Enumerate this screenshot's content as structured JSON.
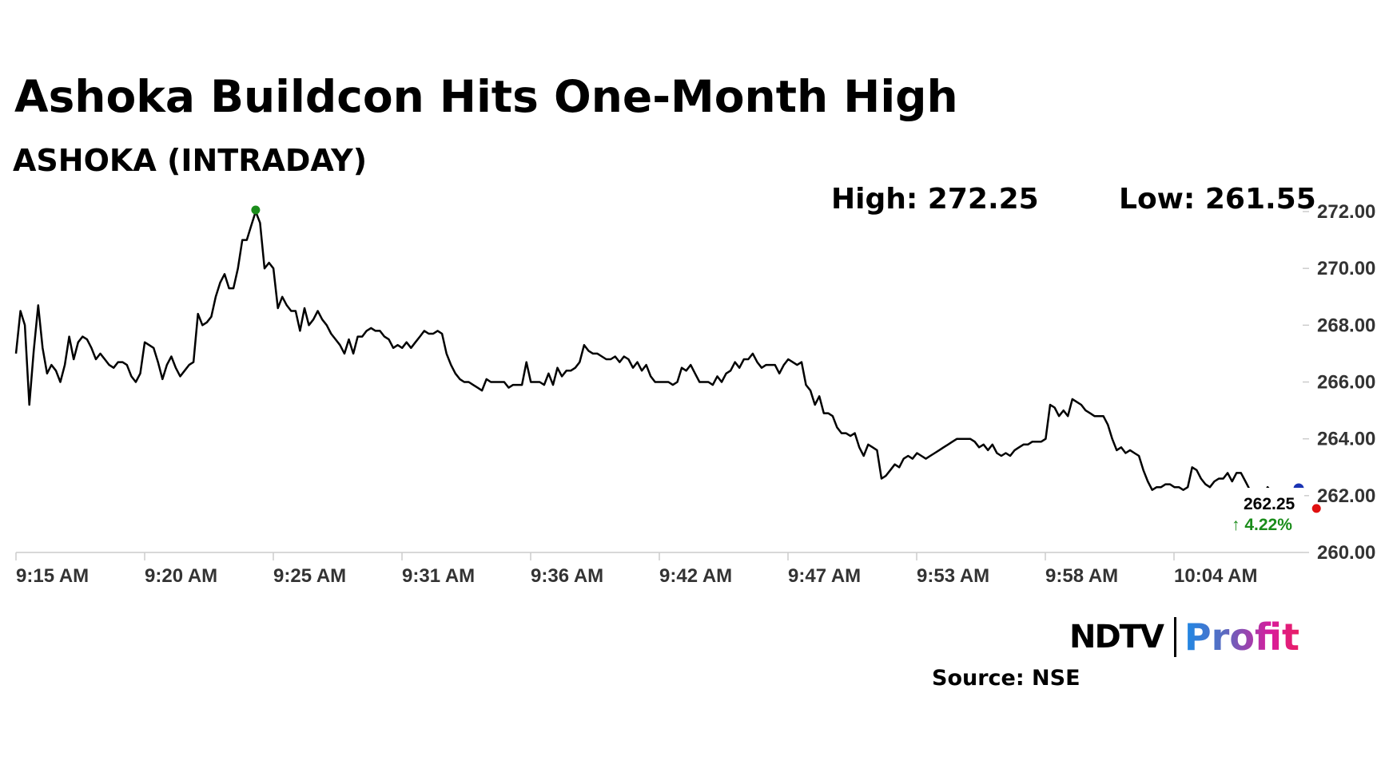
{
  "header": {
    "title": "Ashoka Buildcon Hits One-Month High",
    "subtitle": "ASHOKA (INTRADAY)",
    "high_label": "High: 272.25",
    "low_label": "Low: 261.55"
  },
  "footer": {
    "logo_ndtv": "NDTV",
    "logo_profit": "Profit",
    "source": "Source: NSE"
  },
  "colors": {
    "line": "#000000",
    "high_marker": "#1a8c1a",
    "low_marker": "#e01010",
    "current_marker": "#1a33b3",
    "change_positive": "#1a8c1a",
    "axis": "#cccccc",
    "logo_gradient_start": "#1e88e5",
    "logo_gradient_end": "#e91e63"
  },
  "chart_data": {
    "type": "line",
    "title": "Ashoka Buildcon Hits One-Month High",
    "subtitle": "ASHOKA (INTRADAY)",
    "x_tick_labels": [
      "9:15 AM",
      "9:20 AM",
      "9:25 AM",
      "9:31 AM",
      "9:36 AM",
      "9:42 AM",
      "9:47 AM",
      "9:53 AM",
      "9:58 AM",
      "10:04 AM"
    ],
    "y_ticks": [
      "260.00",
      "262.00",
      "264.00",
      "266.00",
      "268.00",
      "270.00",
      "272.00"
    ],
    "ylim": [
      260,
      272.5
    ],
    "grid": false,
    "series": [
      {
        "values": [
          267.0,
          268.5,
          268.0,
          265.2,
          267.1,
          268.7,
          267.2,
          266.3,
          266.6,
          266.4,
          266.0,
          266.6,
          267.6,
          266.8,
          267.4,
          267.6,
          267.5,
          267.2,
          266.8,
          267.0,
          266.8,
          266.6,
          266.5,
          266.7,
          266.7,
          266.6,
          266.2,
          266.0,
          266.3,
          267.4,
          267.3,
          267.2,
          266.7,
          266.1,
          266.6,
          266.9,
          266.5,
          266.2,
          266.4,
          266.6,
          266.7,
          268.4,
          268.0,
          268.1,
          268.3,
          269.0,
          269.5,
          269.8,
          269.3,
          269.3,
          270.0,
          271.0,
          271.0,
          271.5,
          272.0,
          271.6,
          270.0,
          270.2,
          270.0,
          268.6,
          269.0,
          268.7,
          268.5,
          268.5,
          267.8,
          268.6,
          268.0,
          268.2,
          268.5,
          268.2,
          268.0,
          267.7,
          267.5,
          267.3,
          267.0,
          267.5,
          267.0,
          267.6,
          267.6,
          267.8,
          267.9,
          267.8,
          267.8,
          267.6,
          267.5,
          267.2,
          267.3,
          267.2,
          267.4,
          267.2,
          267.4,
          267.6,
          267.8,
          267.7,
          267.7,
          267.8,
          267.7,
          267.0,
          266.6,
          266.3,
          266.1,
          266.0,
          266.0,
          265.9,
          265.8,
          265.7,
          266.1,
          266.0,
          266.0,
          266.0,
          266.0,
          265.8,
          265.9,
          265.9,
          265.9,
          266.7,
          266.0,
          266.0,
          266.0,
          265.9,
          266.3,
          265.9,
          266.5,
          266.2,
          266.4,
          266.4,
          266.5,
          266.7,
          267.3,
          267.1,
          267.0,
          267.0,
          266.9,
          266.8,
          266.8,
          266.9,
          266.7,
          266.9,
          266.8,
          266.5,
          266.7,
          266.4,
          266.6,
          266.2,
          266.0,
          266.0,
          266.0,
          266.0,
          265.9,
          266.0,
          266.5,
          266.4,
          266.6,
          266.3,
          266.0,
          266.0,
          266.0,
          265.9,
          266.2,
          266.0,
          266.3,
          266.4,
          266.7,
          266.5,
          266.8,
          266.8,
          267.0,
          266.7,
          266.5,
          266.6,
          266.6,
          266.6,
          266.3,
          266.6,
          266.8,
          266.7,
          266.6,
          266.7,
          265.9,
          265.7,
          265.2,
          265.5,
          264.9,
          264.9,
          264.8,
          264.4,
          264.2,
          264.2,
          264.1,
          264.2,
          263.7,
          263.4,
          263.8,
          263.7,
          263.6,
          262.6,
          262.7,
          262.9,
          263.1,
          263.0,
          263.3,
          263.4,
          263.3,
          263.5,
          263.4,
          263.3,
          263.4,
          263.5,
          263.6,
          263.7,
          263.8,
          263.9,
          264.0,
          264.0,
          264.0,
          264.0,
          263.9,
          263.7,
          263.8,
          263.6,
          263.8,
          263.5,
          263.4,
          263.5,
          263.4,
          263.6,
          263.7,
          263.8,
          263.8,
          263.9,
          263.9,
          263.9,
          264.0,
          265.2,
          265.1,
          264.8,
          265.0,
          264.8,
          265.4,
          265.3,
          265.2,
          265.0,
          264.9,
          264.8,
          264.8,
          264.8,
          264.5,
          264.0,
          263.6,
          263.7,
          263.5,
          263.6,
          263.5,
          263.4,
          262.9,
          262.5,
          262.2,
          262.3,
          262.3,
          262.4,
          262.4,
          262.3,
          262.3,
          262.2,
          262.3,
          263.0,
          262.9,
          262.6,
          262.4,
          262.3,
          262.5,
          262.6,
          262.6,
          262.8,
          262.5,
          262.8,
          262.8,
          262.5,
          262.2,
          261.55,
          261.9,
          262.0,
          262.3,
          262.1,
          262.0,
          262.0,
          262.0,
          262.1,
          262.2,
          262.25
        ]
      }
    ],
    "markers": {
      "high": {
        "index": 54,
        "value": 272.25,
        "label": "High: 272.25"
      },
      "low": {
        "index": 293,
        "value": 261.55,
        "label": "Low: 261.55"
      },
      "last": {
        "value": 262.25,
        "label": "262.25",
        "change": "↑ 4.22%"
      }
    }
  }
}
